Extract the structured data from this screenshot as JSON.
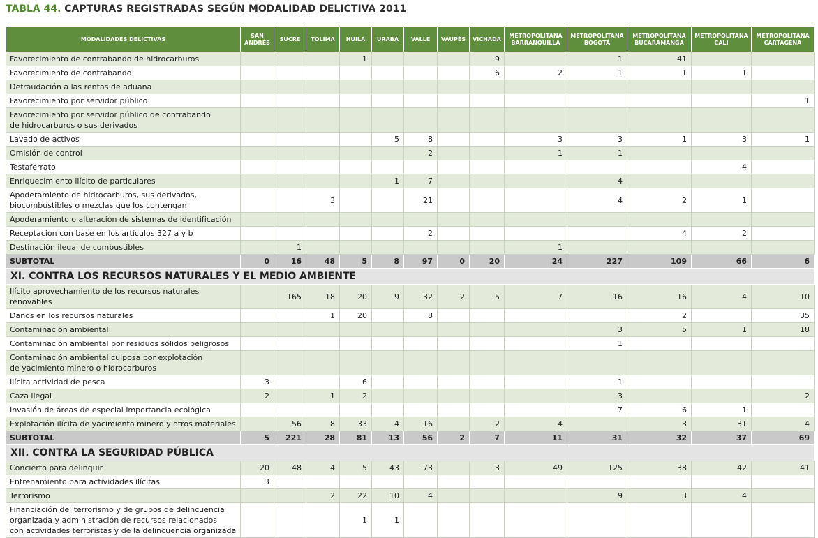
{
  "title": {
    "number": "TABLA 44.",
    "text": "CAPTURAS REGISTRADAS SEGÚN MODALIDAD DELICTIVA 2011"
  },
  "table": {
    "header": [
      "MODALIDADES DELICTIVAS",
      "SAN\nANDRÉS",
      "SUCRE",
      "TOLIMA",
      "HUILA",
      "URABÁ",
      "VALLE",
      "VAUPÉS",
      "VICHADA",
      "METROPOLITANA\nBARRANQUILLA",
      "METROPOLITANA\nBOGOTÁ",
      "METROPOLITANA\nBUCARAMANGA",
      "METROPOLITANA\nCALI",
      "METROPOLITANA\nCARTAGENA"
    ],
    "groups": [
      {
        "rows": [
          [
            "Favorecimiento de contrabando de hidrocarburos",
            null,
            null,
            null,
            1,
            null,
            null,
            null,
            9,
            null,
            1,
            41,
            null,
            null
          ],
          [
            "Favorecimiento de contrabando",
            null,
            null,
            null,
            null,
            null,
            null,
            null,
            6,
            2,
            1,
            1,
            1,
            null
          ],
          [
            "Defraudación a las rentas de aduana",
            null,
            null,
            null,
            null,
            null,
            null,
            null,
            null,
            null,
            null,
            null,
            null,
            null
          ],
          [
            "Favorecimiento por servidor público",
            null,
            null,
            null,
            null,
            null,
            null,
            null,
            null,
            null,
            null,
            null,
            null,
            1
          ],
          [
            "Favorecimiento por servidor público de contrabando\nde hidrocarburos o sus derivados",
            null,
            null,
            null,
            null,
            null,
            null,
            null,
            null,
            null,
            null,
            null,
            null,
            null
          ],
          [
            "Lavado de activos",
            null,
            null,
            null,
            null,
            5,
            8,
            null,
            null,
            3,
            3,
            1,
            3,
            1
          ],
          [
            "Omisión de control",
            null,
            null,
            null,
            null,
            null,
            2,
            null,
            null,
            1,
            1,
            null,
            null,
            null
          ],
          [
            "Testaferrato",
            null,
            null,
            null,
            null,
            null,
            null,
            null,
            null,
            null,
            null,
            null,
            4,
            null
          ],
          [
            "Enriquecimiento ilícito de particulares",
            null,
            null,
            null,
            null,
            1,
            7,
            null,
            null,
            null,
            4,
            null,
            null,
            null
          ],
          [
            "Apoderamiento de hidrocarburos, sus derivados,\nbiocombustibles o mezclas que los contengan",
            null,
            null,
            3,
            null,
            null,
            21,
            null,
            null,
            null,
            4,
            2,
            1,
            null
          ],
          [
            "Apoderamiento o alteración de sistemas de identificación",
            null,
            null,
            null,
            null,
            null,
            null,
            null,
            null,
            null,
            null,
            null,
            null,
            null
          ],
          [
            "Receptación con base en los artículos 327 a y b",
            null,
            null,
            null,
            null,
            null,
            2,
            null,
            null,
            null,
            null,
            4,
            2,
            null
          ],
          [
            "Destinación ilegal de combustibles",
            null,
            1,
            null,
            null,
            null,
            null,
            null,
            null,
            1,
            null,
            null,
            null,
            null
          ]
        ],
        "subtotal": [
          "SUBTOTAL",
          0,
          16,
          48,
          5,
          8,
          97,
          0,
          20,
          24,
          227,
          109,
          66,
          6
        ]
      },
      {
        "section": "XI. CONTRA LOS RECURSOS NATURALES Y EL MEDIO AMBIENTE",
        "rows": [
          [
            "Ilícito aprovechamiento de los recursos naturales renovables",
            null,
            165,
            18,
            20,
            9,
            32,
            2,
            5,
            7,
            16,
            16,
            4,
            10
          ],
          [
            "Daños en los recursos naturales",
            null,
            null,
            1,
            20,
            null,
            8,
            null,
            null,
            null,
            null,
            2,
            null,
            35
          ],
          [
            "Contaminación ambiental",
            null,
            null,
            null,
            null,
            null,
            null,
            null,
            null,
            null,
            3,
            5,
            1,
            18
          ],
          [
            "Contaminación ambiental por residuos sólidos peligrosos",
            null,
            null,
            null,
            null,
            null,
            null,
            null,
            null,
            null,
            1,
            null,
            null,
            null
          ],
          [
            "Contaminación ambiental culposa por explotación\nde yacimiento minero o hidrocarburos",
            null,
            null,
            null,
            null,
            null,
            null,
            null,
            null,
            null,
            null,
            null,
            null,
            null
          ],
          [
            "Ilícita actividad de pesca",
            3,
            null,
            null,
            6,
            null,
            null,
            null,
            null,
            null,
            1,
            null,
            null,
            null
          ],
          [
            "Caza ilegal",
            2,
            null,
            1,
            2,
            null,
            null,
            null,
            null,
            null,
            3,
            null,
            null,
            2
          ],
          [
            "Invasión de áreas de especial importancia ecológica",
            null,
            null,
            null,
            null,
            null,
            null,
            null,
            null,
            null,
            7,
            6,
            1,
            null
          ],
          [
            "Explotación ilícita de yacimiento minero y otros materiales",
            null,
            56,
            8,
            33,
            4,
            16,
            null,
            2,
            4,
            null,
            3,
            31,
            4
          ]
        ],
        "subtotal": [
          "SUBTOTAL",
          5,
          221,
          28,
          81,
          13,
          56,
          2,
          7,
          11,
          31,
          32,
          37,
          69
        ]
      },
      {
        "section": "XII. CONTRA LA SEGURIDAD PÚBLICA",
        "rows": [
          [
            "Concierto para delinquir",
            20,
            48,
            4,
            5,
            43,
            73,
            null,
            3,
            49,
            125,
            38,
            42,
            41
          ],
          [
            "Entrenamiento para actividades ilícitas",
            3,
            null,
            null,
            null,
            null,
            null,
            null,
            null,
            null,
            null,
            null,
            null,
            null
          ],
          [
            "Terrorismo",
            null,
            null,
            2,
            22,
            10,
            4,
            null,
            null,
            null,
            9,
            3,
            4,
            null
          ],
          [
            "Financiación del terrorismo y de grupos de delincuencia\norganizada y administración de recursos relacionados\ncon actividades terroristas y de la delincuencia organizada",
            null,
            null,
            null,
            1,
            1,
            null,
            null,
            null,
            null,
            null,
            null,
            null,
            null
          ]
        ]
      }
    ]
  }
}
